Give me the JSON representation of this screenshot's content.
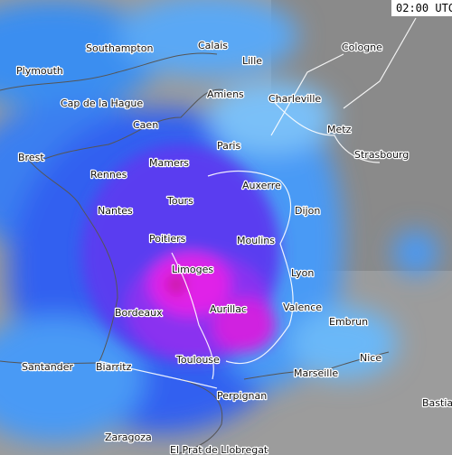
{
  "time": "02:00 UTC",
  "cities": [
    {
      "name": "Southampton"
    },
    {
      "name": "Calais"
    },
    {
      "name": "Lille"
    },
    {
      "name": "Cologne"
    },
    {
      "name": "Plymouth"
    },
    {
      "name": "Amiens"
    },
    {
      "name": "Charleville"
    },
    {
      "name": "Cap de la Hague"
    },
    {
      "name": "Caen"
    },
    {
      "name": "Metz"
    },
    {
      "name": "Paris"
    },
    {
      "name": "Strasbourg"
    },
    {
      "name": "Brest"
    },
    {
      "name": "Mamers"
    },
    {
      "name": "Rennes"
    },
    {
      "name": "Auxerre"
    },
    {
      "name": "Tours"
    },
    {
      "name": "Nantes"
    },
    {
      "name": "Dijon"
    },
    {
      "name": "Poitiers"
    },
    {
      "name": "Moulins"
    },
    {
      "name": "Limoges"
    },
    {
      "name": "Lyon"
    },
    {
      "name": "Valence"
    },
    {
      "name": "Aurillac"
    },
    {
      "name": "Bordeaux"
    },
    {
      "name": "Embrun"
    },
    {
      "name": "Nice"
    },
    {
      "name": "Toulouse"
    },
    {
      "name": "Santander"
    },
    {
      "name": "Biarritz"
    },
    {
      "name": "Marseille"
    },
    {
      "name": "Bastia"
    },
    {
      "name": "Perpignan"
    },
    {
      "name": "Zaragoza"
    },
    {
      "name": "El Prat de Llobregat"
    }
  ]
}
